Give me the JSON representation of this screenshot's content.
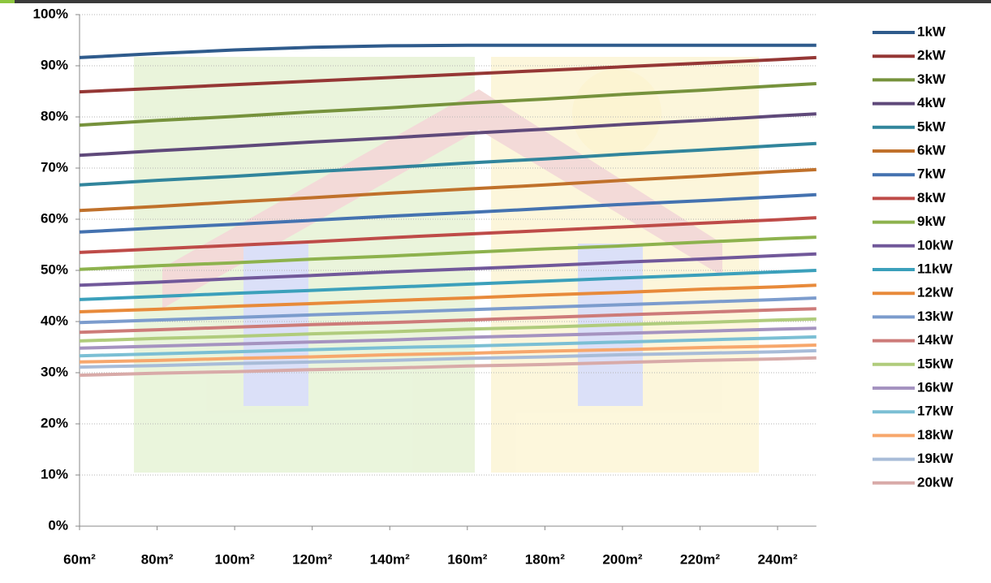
{
  "chart_data": {
    "type": "line",
    "x": [
      60,
      80,
      100,
      120,
      140,
      160,
      180,
      200,
      220,
      240,
      250
    ],
    "xlim": [
      60,
      250
    ],
    "xticks": [
      {
        "value": 60,
        "label": "60m²"
      },
      {
        "value": 80,
        "label": "80m²"
      },
      {
        "value": 100,
        "label": "100m²"
      },
      {
        "value": 120,
        "label": "120m²"
      },
      {
        "value": 140,
        "label": "140m²"
      },
      {
        "value": 160,
        "label": "160m²"
      },
      {
        "value": 180,
        "label": "180m²"
      },
      {
        "value": 200,
        "label": "200m²"
      },
      {
        "value": 220,
        "label": "220m²"
      },
      {
        "value": 240,
        "label": "240m²"
      }
    ],
    "ylim": [
      0,
      100
    ],
    "yticks": [
      {
        "value": 0,
        "label": "0%"
      },
      {
        "value": 10,
        "label": "10%"
      },
      {
        "value": 20,
        "label": "20%"
      },
      {
        "value": 30,
        "label": "30%"
      },
      {
        "value": 40,
        "label": "40%"
      },
      {
        "value": 50,
        "label": "50%"
      },
      {
        "value": 60,
        "label": "60%"
      },
      {
        "value": 70,
        "label": "70%"
      },
      {
        "value": 80,
        "label": "80%"
      },
      {
        "value": 90,
        "label": "90%"
      },
      {
        "value": 100,
        "label": "100%"
      }
    ],
    "grid": true,
    "legend": "right",
    "series": [
      {
        "name": "1kW",
        "color": "#2f5b8c",
        "values": [
          91.6,
          92.4,
          93.1,
          93.6,
          93.9,
          94.0,
          94.0,
          94.0,
          94.0,
          94.0,
          94.0
        ]
      },
      {
        "name": "2kW",
        "color": "#953735",
        "values": [
          84.9,
          85.6,
          86.3,
          87.0,
          87.7,
          88.4,
          89.1,
          89.8,
          90.5,
          91.2,
          91.6
        ]
      },
      {
        "name": "3kW",
        "color": "#76923c",
        "values": [
          78.4,
          79.3,
          80.1,
          81.0,
          81.8,
          82.7,
          83.5,
          84.4,
          85.2,
          86.1,
          86.5
        ]
      },
      {
        "name": "4kW",
        "color": "#5f497a",
        "values": [
          72.5,
          73.4,
          74.2,
          75.1,
          75.9,
          76.8,
          77.6,
          78.5,
          79.3,
          80.2,
          80.6
        ]
      },
      {
        "name": "5kW",
        "color": "#31859c",
        "values": [
          66.7,
          67.6,
          68.4,
          69.3,
          70.1,
          71.0,
          71.8,
          72.7,
          73.5,
          74.4,
          74.8
        ]
      },
      {
        "name": "6kW",
        "color": "#c0712b",
        "values": [
          61.7,
          62.5,
          63.4,
          64.2,
          65.1,
          65.9,
          66.7,
          67.6,
          68.4,
          69.3,
          69.7
        ]
      },
      {
        "name": "7kW",
        "color": "#4472b0",
        "values": [
          57.5,
          58.3,
          59.0,
          59.8,
          60.6,
          61.3,
          62.1,
          62.9,
          63.6,
          64.4,
          64.8
        ]
      },
      {
        "name": "8kW",
        "color": "#be4b48",
        "values": [
          53.5,
          54.2,
          54.9,
          55.6,
          56.4,
          57.1,
          57.8,
          58.5,
          59.2,
          59.9,
          60.3
        ]
      },
      {
        "name": "9kW",
        "color": "#8db24d",
        "values": [
          50.2,
          50.9,
          51.5,
          52.2,
          52.8,
          53.5,
          54.2,
          54.8,
          55.5,
          56.2,
          56.5
        ]
      },
      {
        "name": "10kW",
        "color": "#71589a",
        "values": [
          47.1,
          47.7,
          48.4,
          49.0,
          49.7,
          50.3,
          50.9,
          51.6,
          52.2,
          52.9,
          53.2
        ]
      },
      {
        "name": "11kW",
        "color": "#3ba0bb",
        "values": [
          44.3,
          44.9,
          45.5,
          46.1,
          46.7,
          47.3,
          47.9,
          48.5,
          49.1,
          49.7,
          50.0
        ]
      },
      {
        "name": "12kW",
        "color": "#e88a3a",
        "values": [
          41.9,
          42.4,
          43.0,
          43.5,
          44.1,
          44.6,
          45.2,
          45.7,
          46.3,
          46.8,
          47.1
        ]
      },
      {
        "name": "13kW",
        "color": "#7c9ccd",
        "values": [
          39.8,
          40.3,
          40.8,
          41.3,
          41.8,
          42.3,
          42.8,
          43.3,
          43.8,
          44.3,
          44.6
        ]
      },
      {
        "name": "14kW",
        "color": "#cd7b79",
        "values": [
          37.9,
          38.4,
          38.9,
          39.4,
          39.8,
          40.3,
          40.8,
          41.3,
          41.8,
          42.3,
          42.5
        ]
      },
      {
        "name": "15kW",
        "color": "#b0cc7c",
        "values": [
          36.2,
          36.7,
          37.1,
          37.6,
          38.0,
          38.5,
          38.9,
          39.4,
          39.8,
          40.3,
          40.5
        ]
      },
      {
        "name": "16kW",
        "color": "#a593c0",
        "values": [
          34.8,
          35.2,
          35.6,
          36.0,
          36.4,
          36.9,
          37.3,
          37.7,
          38.1,
          38.5,
          38.7
        ]
      },
      {
        "name": "17kW",
        "color": "#7bbfd4",
        "values": [
          33.3,
          33.7,
          34.1,
          34.5,
          34.9,
          35.2,
          35.6,
          36.0,
          36.4,
          36.8,
          37.0
        ]
      },
      {
        "name": "18kW",
        "color": "#f7a76c",
        "values": [
          32.1,
          32.4,
          32.8,
          33.1,
          33.5,
          33.8,
          34.2,
          34.5,
          34.9,
          35.2,
          35.4
        ]
      },
      {
        "name": "19kW",
        "color": "#a8bcd8",
        "values": [
          31.1,
          31.4,
          31.8,
          32.1,
          32.4,
          32.8,
          33.1,
          33.5,
          33.8,
          34.1,
          34.3
        ]
      },
      {
        "name": "20kW",
        "color": "#d8aaa8",
        "values": [
          29.5,
          29.9,
          30.2,
          30.6,
          30.9,
          31.3,
          31.6,
          32.0,
          32.4,
          32.7,
          32.9
        ]
      }
    ]
  }
}
